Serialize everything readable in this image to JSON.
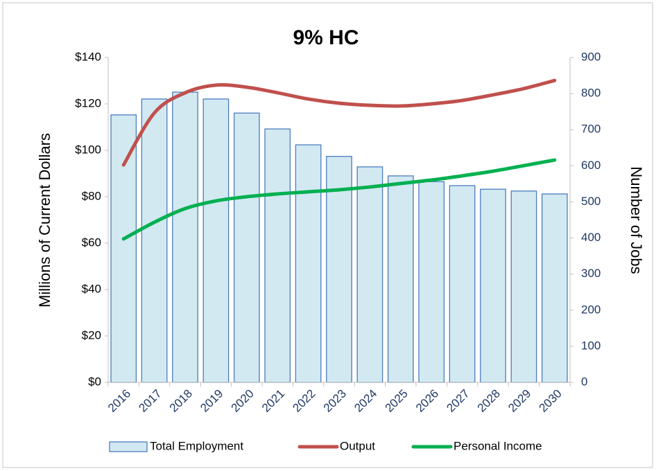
{
  "chart_data": {
    "type": "combo",
    "title": "9% HC",
    "ylabel": "Millions of Current Dollars",
    "y2label": "Number of Jobs",
    "categories": [
      "2016",
      "2017",
      "2018",
      "2019",
      "2020",
      "2021",
      "2022",
      "2023",
      "2024",
      "2025",
      "2026",
      "2027",
      "2028",
      "2029",
      "2030"
    ],
    "series": [
      {
        "name": "Total Employment",
        "type": "bar",
        "axis": "y2",
        "color": "#d2e9f1",
        "edgecolor": "#4a7cc0",
        "values": [
          741,
          785,
          804,
          785,
          746,
          702,
          658,
          626,
          597,
          572,
          556,
          545,
          535,
          530,
          522
        ]
      },
      {
        "name": "Output",
        "type": "line",
        "color": "#c0504d",
        "values": [
          93.7,
          116.1,
          124.8,
          128.1,
          127.2,
          124.8,
          122.1,
          120.3,
          119.4,
          119.1,
          120,
          121.5,
          123.9,
          126.6,
          130.1
        ]
      },
      {
        "name": "Personal Income",
        "type": "line",
        "color": "#00b050",
        "values": [
          61.8,
          69,
          74.9,
          78.2,
          80,
          81.2,
          82.1,
          83,
          84.2,
          85.7,
          87.2,
          89,
          91,
          93.4,
          95.8
        ]
      }
    ],
    "ylim": [
      0,
      140
    ],
    "yticks": [
      {
        "value": 0,
        "label": "$0"
      },
      {
        "value": 20,
        "label": "$20"
      },
      {
        "value": 40,
        "label": "$40"
      },
      {
        "value": 60,
        "label": "$60"
      },
      {
        "value": 80,
        "label": "$80"
      },
      {
        "value": 100,
        "label": "$100"
      },
      {
        "value": 120,
        "label": "$120"
      },
      {
        "value": 140,
        "label": "$140"
      }
    ],
    "y2lim": [
      0,
      900
    ],
    "y2ticks": [
      0,
      100,
      200,
      300,
      400,
      500,
      600,
      700,
      800,
      900
    ],
    "legend": "bottom"
  }
}
